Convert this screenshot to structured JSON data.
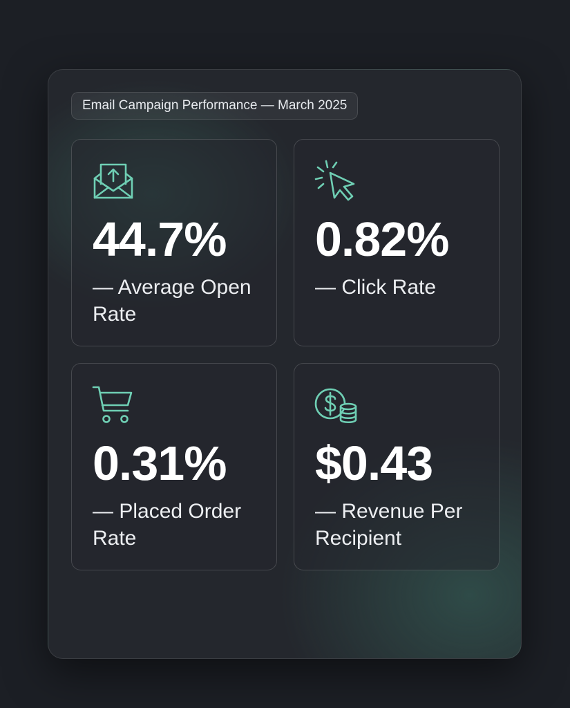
{
  "header": {
    "title": "Email Campaign Performance — March 2025"
  },
  "metrics": [
    {
      "value": "44.7%",
      "label": "— Average Open Rate",
      "icon": "envelope-open-icon"
    },
    {
      "value": "0.82%",
      "label": "— Click Rate",
      "icon": "cursor-click-icon"
    },
    {
      "value": "0.31%",
      "label": "— Placed Order Rate",
      "icon": "shopping-cart-icon"
    },
    {
      "value": "$0.43",
      "label": "— Revenue Per Recipient",
      "icon": "dollar-coins-icon"
    }
  ],
  "colors": {
    "background": "#1c1f25",
    "panel": "#24272d",
    "accent": "#6fcfb4",
    "text": "#ffffff"
  }
}
